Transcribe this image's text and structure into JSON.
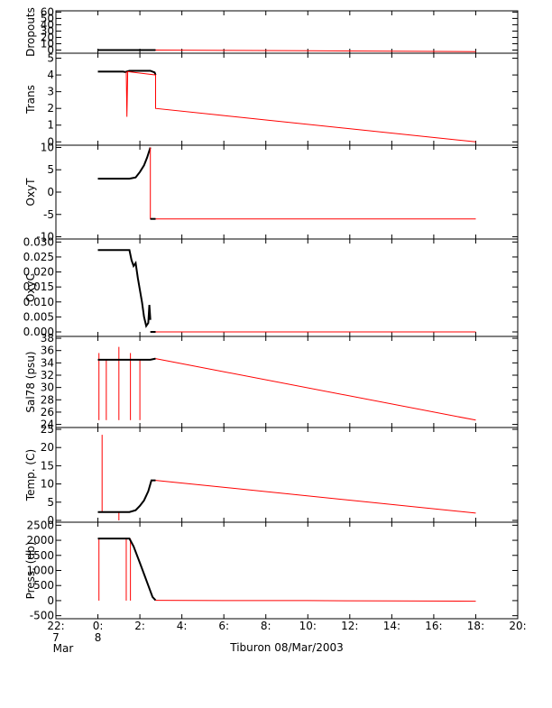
{
  "chart_data": [
    {
      "type": "line",
      "ylabel": "Dropouts",
      "ylim": [
        -5,
        62
      ],
      "ytick_values": [
        0,
        10,
        20,
        30,
        40,
        50,
        60
      ],
      "ytick_labels": [
        "0",
        "10",
        "20",
        "30",
        "40",
        "50",
        "60"
      ],
      "series": [
        {
          "color": "#000000",
          "x": [
            0.0,
            0.5,
            1.0,
            1.5,
            2.0,
            2.5,
            2.75
          ],
          "y": [
            0,
            0,
            0,
            0,
            0,
            0,
            0
          ]
        },
        {
          "color": "#ff0000",
          "x": [
            2.75,
            6.0,
            10.0,
            14.0,
            18.0
          ],
          "y": [
            0,
            -0.6,
            -1.2,
            -1.8,
            -2.4
          ]
        }
      ]
    },
    {
      "type": "line",
      "ylabel": "Trans",
      "ylim": [
        -0.2,
        5.3
      ],
      "ytick_values": [
        0,
        1,
        2,
        3,
        4,
        5
      ],
      "ytick_labels": [
        "0",
        "1",
        "2",
        "3",
        "4",
        "5"
      ],
      "series": [
        {
          "color": "#000000",
          "x": [
            0.0,
            0.6,
            1.2,
            1.3,
            1.5,
            2.0,
            2.5,
            2.7,
            2.75
          ],
          "y": [
            4.2,
            4.2,
            4.2,
            4.18,
            4.25,
            4.25,
            4.25,
            4.15,
            4.0
          ]
        },
        {
          "color": "#ff0000",
          "x": [
            1.35,
            1.38,
            1.42,
            2.75,
            2.75,
            18.0
          ],
          "y": [
            4.2,
            1.5,
            4.2,
            4.0,
            2.0,
            0.0
          ]
        }
      ]
    },
    {
      "type": "line",
      "ylabel": "OxyT",
      "ylim": [
        -10.5,
        10.5
      ],
      "ytick_values": [
        -10,
        -5,
        0,
        5,
        10
      ],
      "ytick_labels": [
        "-10",
        "-5",
        "0",
        "5",
        "10"
      ],
      "series": [
        {
          "color": "#000000",
          "x": [
            0.0,
            0.5,
            1.0,
            1.5,
            1.8,
            2.0,
            2.2,
            2.35,
            2.5
          ],
          "y": [
            3.0,
            3.0,
            3.0,
            3.0,
            3.3,
            4.5,
            6.0,
            7.8,
            10.0
          ]
        },
        {
          "color": "#ff0000",
          "x": [
            2.5,
            2.5,
            18.0
          ],
          "y": [
            10.0,
            -6.0,
            -6.0
          ]
        },
        {
          "color": "#000000",
          "x": [
            2.5,
            2.75
          ],
          "y": [
            -6.0,
            -6.0
          ]
        }
      ]
    },
    {
      "type": "line",
      "ylabel": "OxyC",
      "ylim": [
        -0.0015,
        0.031
      ],
      "ytick_values": [
        0.0,
        0.005,
        0.01,
        0.015,
        0.02,
        0.025,
        0.03
      ],
      "ytick_labels": [
        "0.000",
        "0.005",
        "0.010",
        "0.015",
        "0.020",
        "0.025",
        "0.030"
      ],
      "series": [
        {
          "color": "#000000",
          "x": [
            0.0,
            0.5,
            1.0,
            1.5,
            1.6,
            1.7,
            1.8,
            1.9,
            2.0,
            2.1,
            2.2,
            2.3,
            2.4,
            2.45,
            2.5
          ],
          "y": [
            0.0273,
            0.0273,
            0.0273,
            0.0273,
            0.024,
            0.022,
            0.023,
            0.018,
            0.014,
            0.01,
            0.005,
            0.002,
            0.003,
            0.009,
            0.004
          ]
        },
        {
          "color": "#ff0000",
          "x": [
            2.5,
            18.0
          ],
          "y": [
            0.0,
            0.0
          ]
        },
        {
          "color": "#000000",
          "x": [
            2.5,
            2.75
          ],
          "y": [
            0.0,
            0.0
          ]
        }
      ]
    },
    {
      "type": "line",
      "ylabel": "Sal78 (psu)",
      "ylim": [
        23.5,
        38.3
      ],
      "ytick_values": [
        24,
        26,
        28,
        30,
        32,
        34,
        36,
        38
      ],
      "ytick_labels": [
        "24",
        "26",
        "28",
        "30",
        "32",
        "34",
        "36",
        "38"
      ],
      "series": [
        {
          "color": "#000000",
          "x": [
            0.0,
            0.5,
            1.0,
            1.5,
            2.0,
            2.5,
            2.75
          ],
          "y": [
            34.5,
            34.5,
            34.5,
            34.5,
            34.5,
            34.5,
            34.7
          ]
        },
        {
          "color": "#ff0000",
          "x": [
            2.75,
            18.0
          ],
          "y": [
            34.7,
            24.7
          ]
        }
      ],
      "spikes": [
        {
          "x": 0.05,
          "y_from": 24.7,
          "y_to": 35.6
        },
        {
          "x": 0.4,
          "y_from": 24.7,
          "y_to": 34.5
        },
        {
          "x": 1.0,
          "y_from": 24.7,
          "y_to": 36.6
        },
        {
          "x": 1.55,
          "y_from": 24.7,
          "y_to": 35.6
        },
        {
          "x": 2.0,
          "y_from": 24.7,
          "y_to": 34.5
        }
      ]
    },
    {
      "type": "line",
      "ylabel": "Temp. (C)",
      "ylim": [
        -0.5,
        25.5
      ],
      "ytick_values": [
        0,
        5,
        10,
        15,
        20,
        25
      ],
      "ytick_labels": [
        "0",
        "5",
        "10",
        "15",
        "20",
        "25"
      ],
      "series": [
        {
          "color": "#000000",
          "x": [
            0.0,
            0.5,
            1.0,
            1.5,
            1.8,
            2.0,
            2.2,
            2.4,
            2.55,
            2.75
          ],
          "y": [
            2.3,
            2.3,
            2.3,
            2.3,
            2.8,
            4.0,
            5.5,
            8.0,
            11.0,
            11.0
          ]
        },
        {
          "color": "#ff0000",
          "x": [
            2.75,
            18.0
          ],
          "y": [
            11.0,
            2.0
          ]
        }
      ],
      "spikes": [
        {
          "x": 0.2,
          "y_from": 2.3,
          "y_to": 23.5
        },
        {
          "x": 1.0,
          "y_from": 2.3,
          "y_to": 0.0
        }
      ]
    },
    {
      "type": "line",
      "ylabel": "Press. (db)",
      "ylim": [
        -600,
        2600
      ],
      "ytick_values": [
        -500,
        0,
        500,
        1000,
        1500,
        2000,
        2500
      ],
      "ytick_labels": [
        "-500",
        "0",
        "500",
        "1000",
        "1500",
        "2000",
        "2500"
      ],
      "series": [
        {
          "color": "#000000",
          "x": [
            0.0,
            0.5,
            1.0,
            1.5,
            1.7,
            2.0,
            2.2,
            2.4,
            2.6,
            2.75
          ],
          "y": [
            2060,
            2060,
            2060,
            2060,
            1800,
            1250,
            880,
            500,
            120,
            10
          ]
        },
        {
          "color": "#ff0000",
          "x": [
            2.75,
            6.0,
            10.0,
            14.0,
            18.0
          ],
          "y": [
            10,
            0,
            0,
            -10,
            -20
          ]
        }
      ],
      "spikes": [
        {
          "x": 0.05,
          "y_from": 0,
          "y_to": 2060
        },
        {
          "x": 1.35,
          "y_from": 0,
          "y_to": 2060
        },
        {
          "x": 1.55,
          "y_from": 0,
          "y_to": 2060
        }
      ]
    }
  ],
  "x_axis": {
    "xlim": [
      -2.0,
      20.0
    ],
    "tick_values": [
      -2,
      0,
      2,
      4,
      6,
      8,
      10,
      12,
      14,
      16,
      18,
      20
    ],
    "tick_labels": [
      "22:",
      "0:",
      "2:",
      "4:",
      "6:",
      "8:",
      "10:",
      "12:",
      "14:",
      "16:",
      "18:",
      "20:"
    ],
    "day_markers": [
      {
        "x": -2,
        "day": "7",
        "month": "Mar"
      },
      {
        "x": 0,
        "day": "8",
        "month": "Mar"
      }
    ],
    "label": "Tiburon 08/Mar/2003"
  }
}
